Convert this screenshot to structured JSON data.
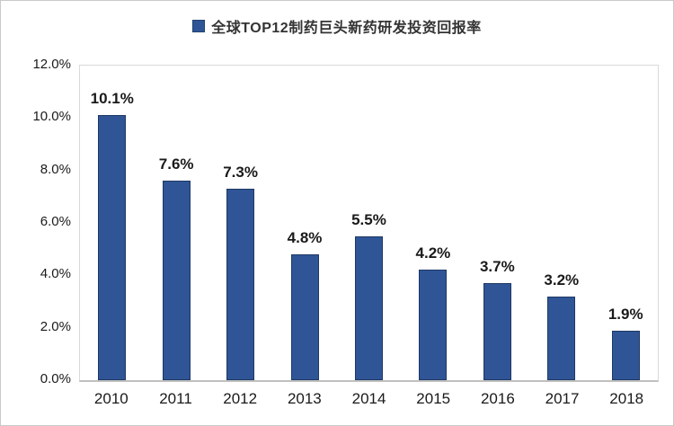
{
  "legend": {
    "label": "全球TOP12制药巨头新药研发投资回报率",
    "marker_color": "#2F5597",
    "marker_border_color": "#24426F"
  },
  "chart_data": {
    "type": "bar",
    "title": "全球TOP12制药巨头新药研发投资回报率",
    "categories": [
      "2010",
      "2011",
      "2012",
      "2013",
      "2014",
      "2015",
      "2016",
      "2017",
      "2018"
    ],
    "values": [
      10.1,
      7.6,
      7.3,
      4.8,
      5.5,
      4.2,
      3.7,
      3.2,
      1.9
    ],
    "value_labels": [
      "10.1%",
      "7.6%",
      "7.3%",
      "4.8%",
      "5.5%",
      "4.2%",
      "3.7%",
      "3.2%",
      "1.9%"
    ],
    "xlabel": "",
    "ylabel": "",
    "ylim": [
      0,
      12
    ],
    "ytick_labels": [
      "0.0%",
      "2.0%",
      "4.0%",
      "6.0%",
      "8.0%",
      "10.0%",
      "12.0%"
    ],
    "grid": false,
    "legend_position": "top-center",
    "bar_color": "#2F5597",
    "bar_border_color": "#1F3864"
  }
}
